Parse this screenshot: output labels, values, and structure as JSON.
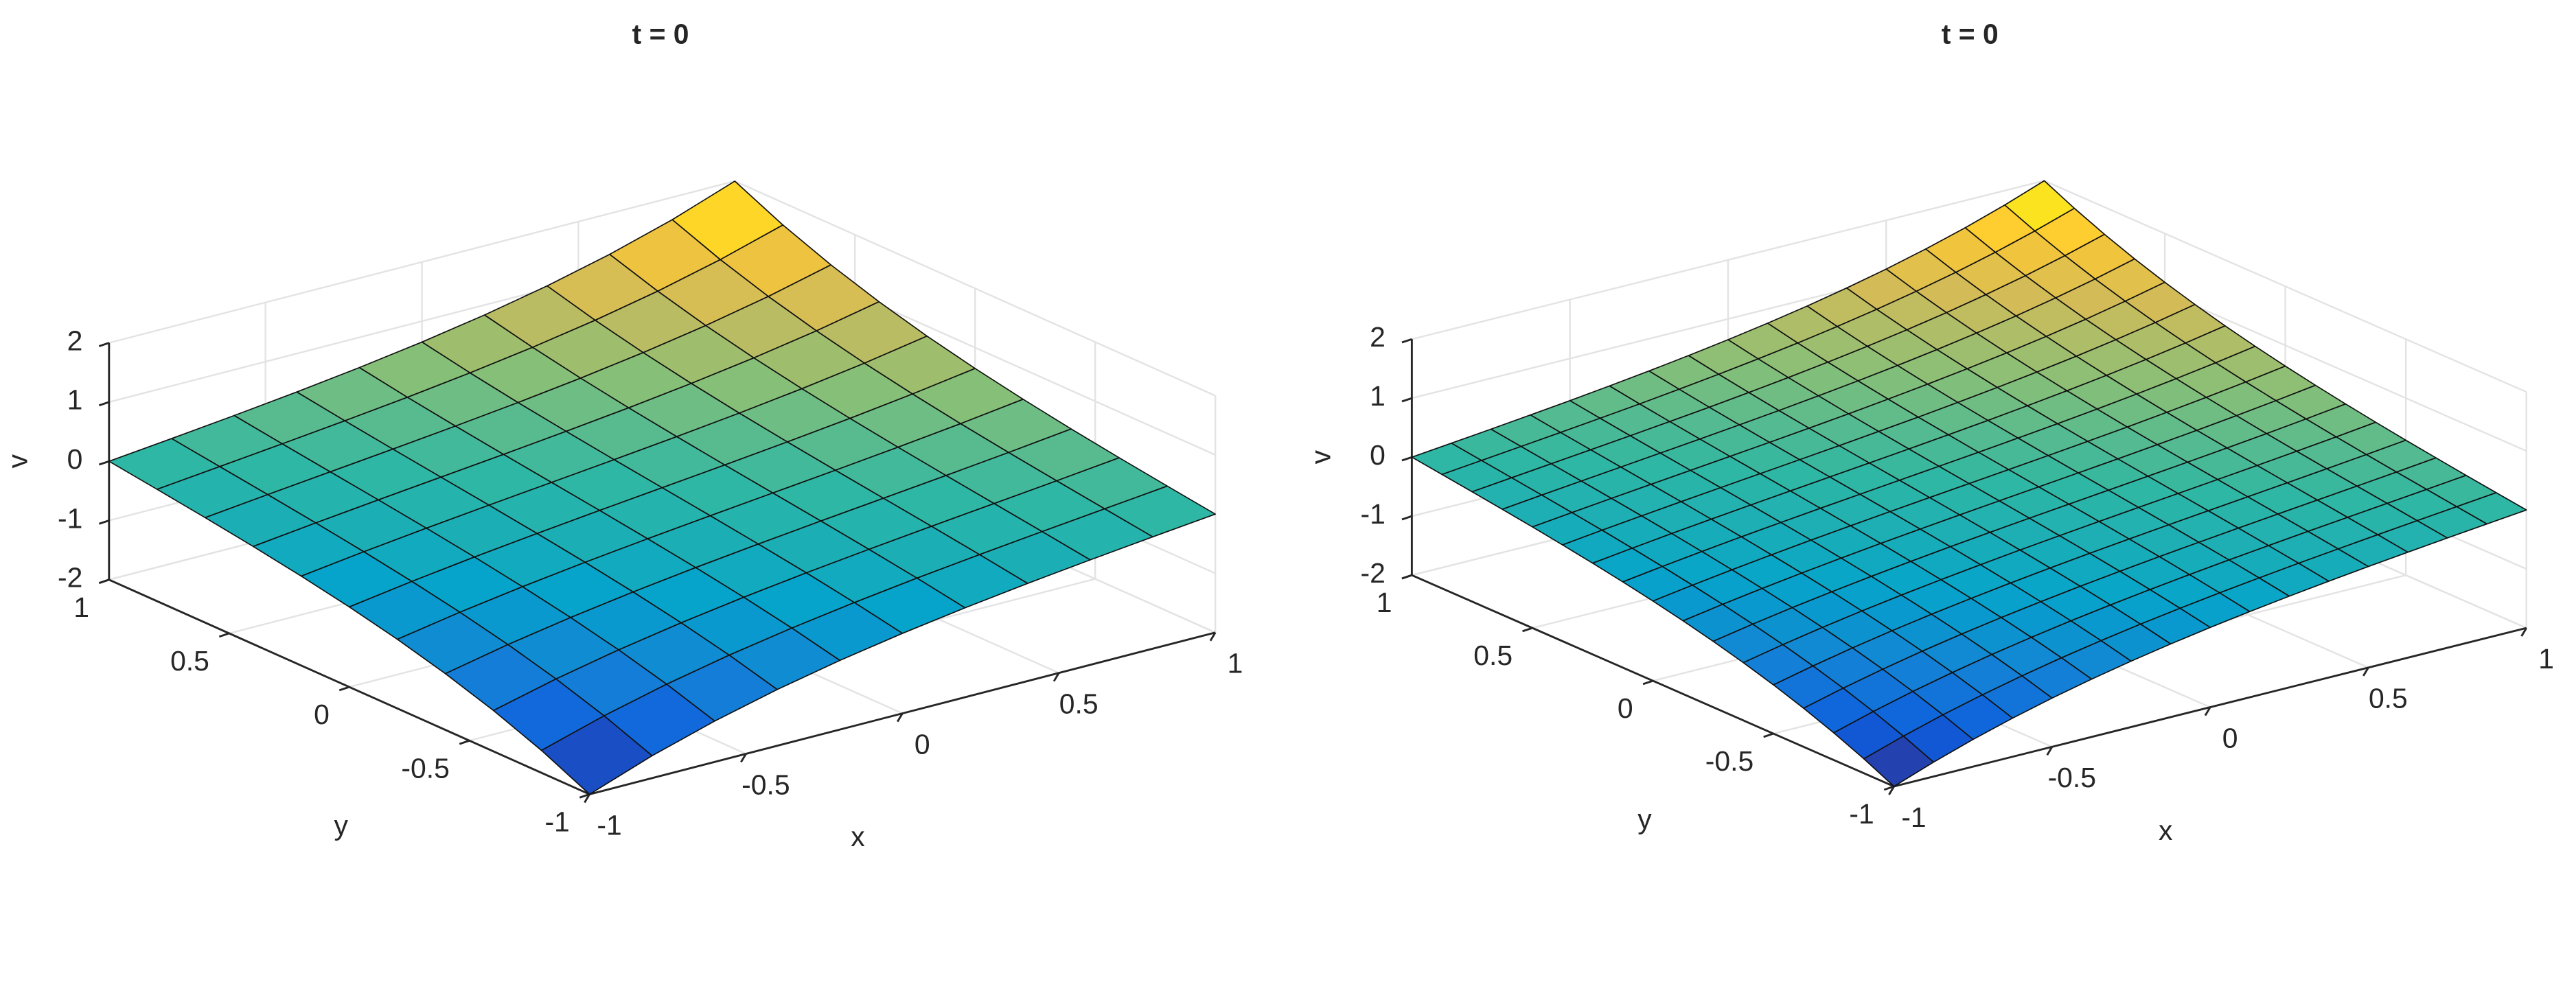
{
  "chart_data": [
    {
      "type": "surface",
      "title": "t = 0",
      "xlabel": "x",
      "ylabel": "y",
      "zlabel": "v",
      "colormap": [
        "#352a87",
        "#0f5cdd",
        "#1481d6",
        "#06a4ca",
        "#2eb7a4",
        "#87bf77",
        "#d1bb59",
        "#fec832",
        "#f9fb0e"
      ],
      "xlim": [
        -1,
        1
      ],
      "ylim": [
        -1,
        1
      ],
      "zlim": [
        -2,
        2
      ],
      "xticks": [
        -1,
        -0.5,
        0,
        0.5,
        1
      ],
      "yticks": [
        -1,
        -0.5,
        0,
        0.5,
        1
      ],
      "zticks": [
        -2,
        -1,
        0,
        1,
        2
      ],
      "grid": true,
      "x": [
        -1,
        -0.8,
        -0.6,
        -0.4,
        -0.2,
        0,
        0.2,
        0.4,
        0.6,
        0.8,
        1
      ],
      "y": [
        -1,
        -0.8,
        -0.6,
        -0.4,
        -0.2,
        0,
        0.2,
        0.4,
        0.6,
        0.8,
        1
      ],
      "z": [
        [
          -2,
          -1.622,
          -1.31,
          -1.05,
          -0.832,
          -0.648,
          -0.49,
          -0.351,
          -0.227,
          -0.111,
          0
        ],
        [
          -1.622,
          -1.31,
          -1.05,
          -0.832,
          -0.648,
          -0.49,
          -0.351,
          -0.227,
          -0.111,
          0,
          0.111
        ],
        [
          -1.31,
          -1.05,
          -0.832,
          -0.648,
          -0.49,
          -0.351,
          -0.227,
          -0.111,
          0,
          0.111,
          0.227
        ],
        [
          -1.05,
          -0.832,
          -0.648,
          -0.49,
          -0.351,
          -0.227,
          -0.111,
          0,
          0.111,
          0.227,
          0.351
        ],
        [
          -0.832,
          -0.648,
          -0.49,
          -0.351,
          -0.227,
          -0.111,
          0,
          0.111,
          0.227,
          0.351,
          0.49
        ],
        [
          -0.648,
          -0.49,
          -0.351,
          -0.227,
          -0.111,
          0,
          0.111,
          0.227,
          0.351,
          0.49,
          0.648
        ],
        [
          -0.49,
          -0.351,
          -0.227,
          -0.111,
          0,
          0.111,
          0.227,
          0.351,
          0.49,
          0.648,
          0.832
        ],
        [
          -0.351,
          -0.227,
          -0.111,
          0,
          0.111,
          0.227,
          0.351,
          0.49,
          0.648,
          0.832,
          1.05
        ],
        [
          -0.227,
          -0.111,
          0,
          0.111,
          0.227,
          0.351,
          0.49,
          0.648,
          0.832,
          1.05,
          1.31
        ],
        [
          -0.111,
          0,
          0.111,
          0.227,
          0.351,
          0.49,
          0.648,
          0.832,
          1.05,
          1.31,
          1.622
        ],
        [
          0,
          0.111,
          0.227,
          0.351,
          0.49,
          0.648,
          0.832,
          1.05,
          1.31,
          1.622,
          2
        ]
      ]
    },
    {
      "type": "surface",
      "title": "t = 0",
      "xlabel": "x",
      "ylabel": "y",
      "zlabel": "v",
      "colormap": [
        "#352a87",
        "#0f5cdd",
        "#1481d6",
        "#06a4ca",
        "#2eb7a4",
        "#87bf77",
        "#d1bb59",
        "#fec832",
        "#f9fb0e"
      ],
      "xlim": [
        -1,
        1
      ],
      "ylim": [
        -1,
        1
      ],
      "zlim": [
        -2,
        2
      ],
      "xticks": [
        -1,
        -0.5,
        0,
        0.5,
        1
      ],
      "yticks": [
        -1,
        -0.5,
        0,
        0.5,
        1
      ],
      "zticks": [
        -2,
        -1,
        0,
        1,
        2
      ],
      "grid": true,
      "x": [
        -1,
        -0.875,
        -0.75,
        -0.625,
        -0.5,
        -0.375,
        -0.25,
        -0.125,
        0,
        0.125,
        0.25,
        0.375,
        0.5,
        0.625,
        0.75,
        0.875,
        1
      ],
      "y": [
        -1,
        -0.875,
        -0.75,
        -0.625,
        -0.5,
        -0.375,
        -0.25,
        -0.125,
        0,
        0.125,
        0.25,
        0.375,
        0.5,
        0.625,
        0.75,
        0.875,
        1
      ],
      "z": [
        [
          -2,
          -1.756,
          -1.539,
          -1.346,
          -1.174,
          -1.021,
          -0.883,
          -0.76,
          -0.648,
          -0.547,
          -0.454,
          -0.368,
          -0.287,
          -0.212,
          -0.139,
          -0.069,
          0
        ],
        [
          -1.756,
          -1.539,
          -1.346,
          -1.174,
          -1.021,
          -0.883,
          -0.76,
          -0.648,
          -0.547,
          -0.454,
          -0.368,
          -0.287,
          -0.212,
          -0.139,
          -0.069,
          0,
          0.069
        ],
        [
          -1.539,
          -1.346,
          -1.174,
          -1.021,
          -0.883,
          -0.76,
          -0.648,
          -0.547,
          -0.454,
          -0.368,
          -0.287,
          -0.212,
          -0.139,
          -0.069,
          0,
          0.069,
          0.139
        ],
        [
          -1.346,
          -1.174,
          -1.021,
          -0.883,
          -0.76,
          -0.648,
          -0.547,
          -0.454,
          -0.368,
          -0.287,
          -0.212,
          -0.139,
          -0.069,
          0,
          0.069,
          0.139,
          0.212
        ],
        [
          -1.174,
          -1.021,
          -0.883,
          -0.76,
          -0.648,
          -0.547,
          -0.454,
          -0.368,
          -0.287,
          -0.212,
          -0.139,
          -0.069,
          0,
          0.069,
          0.139,
          0.212,
          0.287
        ],
        [
          -1.021,
          -0.883,
          -0.76,
          -0.648,
          -0.547,
          -0.454,
          -0.368,
          -0.287,
          -0.212,
          -0.139,
          -0.069,
          0,
          0.069,
          0.139,
          0.212,
          0.287,
          0.368
        ],
        [
          -0.883,
          -0.76,
          -0.648,
          -0.547,
          -0.454,
          -0.368,
          -0.287,
          -0.212,
          -0.139,
          -0.069,
          0,
          0.069,
          0.139,
          0.212,
          0.287,
          0.368,
          0.454
        ],
        [
          -0.76,
          -0.648,
          -0.547,
          -0.454,
          -0.368,
          -0.287,
          -0.212,
          -0.139,
          -0.069,
          0,
          0.069,
          0.139,
          0.212,
          0.287,
          0.368,
          0.454,
          0.547
        ],
        [
          -0.648,
          -0.547,
          -0.454,
          -0.368,
          -0.287,
          -0.212,
          -0.139,
          -0.069,
          0,
          0.069,
          0.139,
          0.212,
          0.287,
          0.368,
          0.454,
          0.547,
          0.648
        ],
        [
          -0.547,
          -0.454,
          -0.368,
          -0.287,
          -0.212,
          -0.139,
          -0.069,
          0,
          0.069,
          0.139,
          0.212,
          0.287,
          0.368,
          0.454,
          0.547,
          0.648,
          0.76
        ],
        [
          -0.454,
          -0.368,
          -0.287,
          -0.212,
          -0.139,
          -0.069,
          0,
          0.069,
          0.139,
          0.212,
          0.287,
          0.368,
          0.454,
          0.547,
          0.648,
          0.76,
          0.883
        ],
        [
          -0.368,
          -0.287,
          -0.212,
          -0.139,
          -0.069,
          0,
          0.069,
          0.139,
          0.212,
          0.287,
          0.368,
          0.454,
          0.547,
          0.648,
          0.76,
          0.883,
          1.021
        ],
        [
          -0.287,
          -0.212,
          -0.139,
          -0.069,
          0,
          0.069,
          0.139,
          0.212,
          0.287,
          0.368,
          0.454,
          0.547,
          0.648,
          0.76,
          0.883,
          1.021,
          1.174
        ],
        [
          -0.212,
          -0.139,
          -0.069,
          0,
          0.069,
          0.139,
          0.212,
          0.287,
          0.368,
          0.454,
          0.547,
          0.648,
          0.76,
          0.883,
          1.021,
          1.174,
          1.346
        ],
        [
          -0.139,
          -0.069,
          0,
          0.069,
          0.139,
          0.212,
          0.287,
          0.368,
          0.454,
          0.547,
          0.648,
          0.76,
          0.883,
          1.021,
          1.174,
          1.346,
          1.539
        ],
        [
          -0.069,
          0,
          0.069,
          0.139,
          0.212,
          0.287,
          0.368,
          0.454,
          0.547,
          0.648,
          0.76,
          0.883,
          1.021,
          1.174,
          1.346,
          1.539,
          1.756
        ],
        [
          0,
          0.069,
          0.139,
          0.212,
          0.287,
          0.368,
          0.454,
          0.547,
          0.648,
          0.76,
          0.883,
          1.021,
          1.174,
          1.346,
          1.539,
          1.756,
          2
        ]
      ]
    }
  ]
}
